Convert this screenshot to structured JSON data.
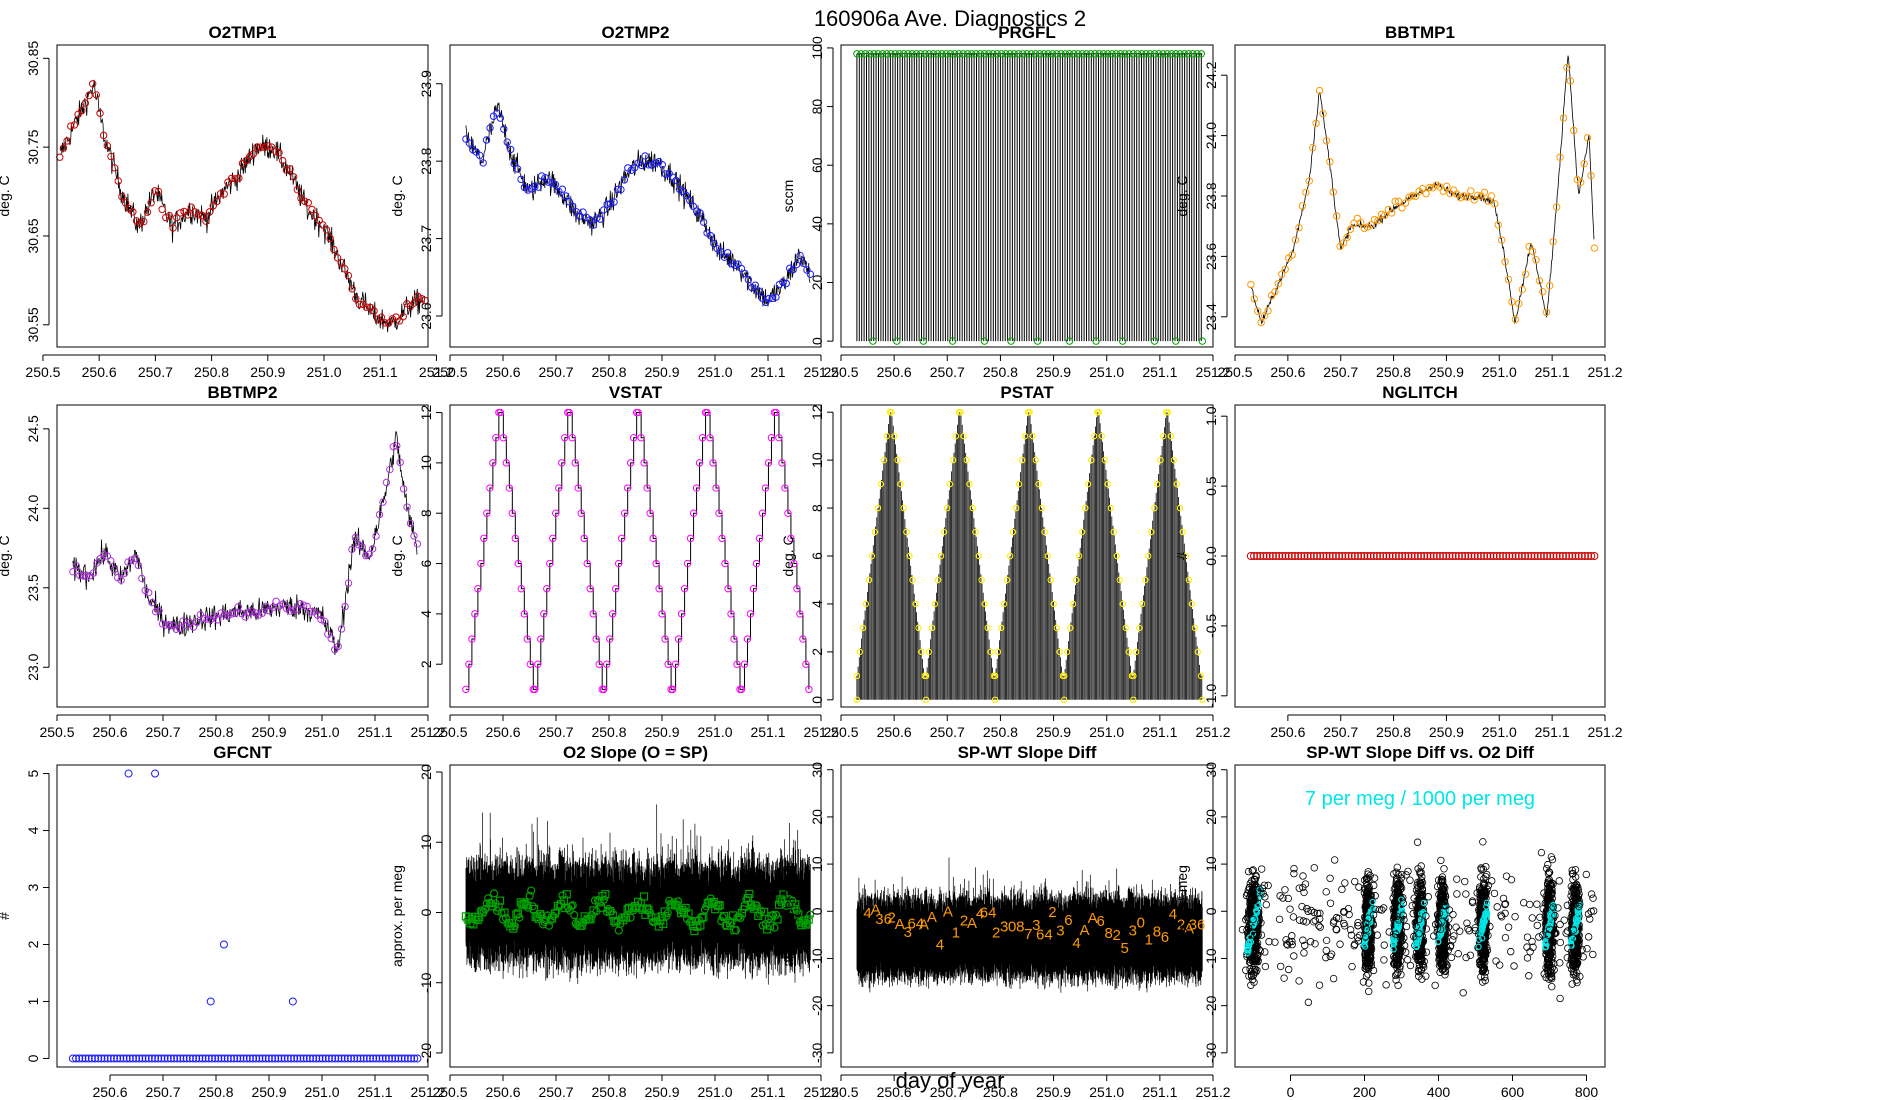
{
  "page": {
    "title": "160906a   Ave. Diagnostics 2",
    "xlabel": "day of year"
  },
  "colors": {
    "red": "#cc0000",
    "blue": "#1a1aff",
    "green": "#00a000",
    "orange": "#ff9900",
    "purple": "#b030e0",
    "magenta": "#ff00ff",
    "yellow": "#ffee00",
    "cyan": "#00e6e6",
    "black": "#000000"
  },
  "chart_data": [
    {
      "id": "o2tmp1",
      "type": "line",
      "title": "O2TMP1",
      "ylabel": "deg. C",
      "xlim": [
        250.525,
        251.185
      ],
      "ylim": [
        30.525,
        30.865
      ],
      "xticks": [
        "250.5",
        "250.6",
        "250.7",
        "250.8",
        "250.9",
        "251.0",
        "251.1",
        "251.2"
      ],
      "yticks": [
        "30.55",
        "30.65",
        "30.75",
        "30.85"
      ],
      "x": [
        250.53,
        250.56,
        250.59,
        250.61,
        250.64,
        250.67,
        250.7,
        250.73,
        250.76,
        250.79,
        250.82,
        250.85,
        250.88,
        250.91,
        250.94,
        250.97,
        251.0,
        251.03,
        251.06,
        251.09,
        251.12,
        251.15,
        251.18
      ],
      "y": [
        30.74,
        30.78,
        30.82,
        30.76,
        30.7,
        30.66,
        30.7,
        30.66,
        30.68,
        30.67,
        30.7,
        30.72,
        30.75,
        30.75,
        30.72,
        30.68,
        30.66,
        30.62,
        30.58,
        30.56,
        30.55,
        30.57,
        30.58
      ],
      "marker_color": "red"
    },
    {
      "id": "o2tmp2",
      "type": "line",
      "title": "O2TMP2",
      "ylabel": "deg. C",
      "xlim": [
        250.5,
        251.2
      ],
      "ylim": [
        23.56,
        23.95
      ],
      "xticks": [
        "250.5",
        "250.6",
        "250.7",
        "250.8",
        "250.9",
        "251.0",
        "251.1",
        "251.2"
      ],
      "yticks": [
        "23.6",
        "23.7",
        "23.8",
        "23.9"
      ],
      "x": [
        250.53,
        250.56,
        250.59,
        250.62,
        250.65,
        250.68,
        250.71,
        250.74,
        250.77,
        250.8,
        250.83,
        250.86,
        250.89,
        250.92,
        250.95,
        250.98,
        251.01,
        251.04,
        251.07,
        251.1,
        251.13,
        251.16,
        251.18
      ],
      "y": [
        23.83,
        23.8,
        23.87,
        23.8,
        23.76,
        23.78,
        23.76,
        23.73,
        23.72,
        23.74,
        23.78,
        23.8,
        23.8,
        23.78,
        23.75,
        23.72,
        23.68,
        23.67,
        23.64,
        23.62,
        23.64,
        23.68,
        23.65
      ],
      "marker_color": "blue"
    },
    {
      "id": "prgfl",
      "type": "line",
      "title": "PRGFL",
      "ylabel": "sccm",
      "xlim": [
        250.5,
        251.2
      ],
      "ylim": [
        -2,
        101
      ],
      "xticks": [
        "250.5",
        "250.6",
        "250.7",
        "250.8",
        "250.9",
        "251.0",
        "251.1",
        "251.2"
      ],
      "yticks": [
        "0",
        "20",
        "40",
        "60",
        "80",
        "100"
      ],
      "high_value": 98,
      "low_value": 0,
      "low_x": [
        250.56,
        250.605,
        250.655,
        250.71,
        250.77,
        250.82,
        250.87,
        250.93,
        250.98,
        251.03,
        251.09,
        251.13,
        251.18
      ],
      "marker_color": "green"
    },
    {
      "id": "bbtmp1",
      "type": "line",
      "title": "BBTMP1",
      "ylabel": "deg. C",
      "xlim": [
        250.5,
        251.2
      ],
      "ylim": [
        23.3,
        24.3
      ],
      "xticks": [
        "250.5",
        "250.6",
        "250.7",
        "250.8",
        "250.9",
        "251.0",
        "251.1",
        "251.2"
      ],
      "yticks": [
        "23.4",
        "23.6",
        "23.8",
        "24.0",
        "24.2"
      ],
      "x": [
        250.53,
        250.55,
        250.58,
        250.61,
        250.64,
        250.66,
        250.68,
        250.7,
        250.72,
        250.76,
        250.8,
        250.84,
        250.88,
        250.92,
        250.96,
        250.99,
        251.01,
        251.03,
        251.06,
        251.09,
        251.11,
        251.13,
        251.15,
        251.17,
        251.18
      ],
      "y": [
        23.5,
        23.38,
        23.5,
        23.62,
        23.85,
        24.15,
        23.9,
        23.62,
        23.7,
        23.7,
        23.76,
        23.8,
        23.84,
        23.8,
        23.8,
        23.78,
        23.6,
        23.38,
        23.65,
        23.4,
        23.8,
        24.28,
        23.8,
        24.0,
        23.62
      ],
      "marker_color": "orange"
    },
    {
      "id": "bbtmp2",
      "type": "line",
      "title": "BBTMP2",
      "ylabel": "deg. C",
      "xlim": [
        250.5,
        251.2
      ],
      "ylim": [
        22.75,
        24.65
      ],
      "xticks": [
        "250.5",
        "250.6",
        "250.7",
        "250.8",
        "250.9",
        "251.0",
        "251.1",
        "251.2"
      ],
      "yticks": [
        "23.0",
        "23.5",
        "24.0",
        "24.5"
      ],
      "x": [
        250.53,
        250.56,
        250.59,
        250.62,
        250.65,
        250.67,
        250.7,
        250.73,
        250.76,
        250.8,
        250.84,
        250.88,
        250.92,
        250.96,
        251.0,
        251.03,
        251.06,
        251.09,
        251.12,
        251.14,
        251.16,
        251.18
      ],
      "y": [
        23.62,
        23.58,
        23.72,
        23.55,
        23.72,
        23.45,
        23.3,
        23.25,
        23.3,
        23.32,
        23.35,
        23.35,
        23.38,
        23.38,
        23.32,
        23.1,
        23.8,
        23.7,
        24.1,
        24.45,
        24.0,
        23.75
      ],
      "marker_color": "purple"
    },
    {
      "id": "vstat",
      "type": "step",
      "title": "VSTAT",
      "ylabel": "deg. C",
      "xlim": [
        250.5,
        251.2
      ],
      "ylim": [
        0.3,
        12.3
      ],
      "xticks": [
        "250.5",
        "250.6",
        "250.7",
        "250.8",
        "250.9",
        "251.0",
        "251.1",
        "251.2"
      ],
      "yticks": [
        "2",
        "4",
        "6",
        "8",
        "10",
        "12"
      ],
      "cycle_start": 250.53,
      "cycle_length": 0.13,
      "cycles": 5,
      "min": 1,
      "max": 12,
      "marker_color": "magenta"
    },
    {
      "id": "pstat",
      "type": "impulse",
      "title": "PSTAT",
      "ylabel": "deg. C",
      "xlim": [
        250.5,
        251.2
      ],
      "ylim": [
        -0.3,
        12.3
      ],
      "xticks": [
        "250.5",
        "250.6",
        "250.7",
        "250.8",
        "250.9",
        "251.0",
        "251.1",
        "251.2"
      ],
      "yticks": [
        "0",
        "2",
        "4",
        "6",
        "8",
        "10",
        "12"
      ],
      "cycle_start": 250.53,
      "cycle_length": 0.13,
      "cycles": 5,
      "min": 1,
      "max": 12,
      "marker_color": "yellow"
    },
    {
      "id": "nglitch",
      "type": "scatter",
      "title": "NGLITCH",
      "ylabel": "#",
      "xlim": [
        250.5,
        251.2
      ],
      "ylim": [
        -1.08,
        1.08
      ],
      "xticks": [
        "250.6",
        "250.7",
        "250.8",
        "250.9",
        "251.0",
        "251.1",
        "251.2"
      ],
      "yticks": [
        "-1.0",
        "-0.5",
        "0.0",
        "0.5",
        "1.0"
      ],
      "x_start": 250.53,
      "x_end": 251.18,
      "count": 110,
      "value": 0,
      "marker_color": "red"
    },
    {
      "id": "gfcnt",
      "type": "scatter",
      "title": "GFCNT",
      "ylabel": "#",
      "xlim": [
        250.5,
        251.2
      ],
      "ylim": [
        -0.15,
        5.15
      ],
      "xticks": [
        "250.6",
        "250.7",
        "250.8",
        "250.9",
        "251.0",
        "251.1",
        "251.2"
      ],
      "yticks": [
        "0",
        "1",
        "2",
        "3",
        "4",
        "5"
      ],
      "x_start": 250.53,
      "x_end": 251.18,
      "count": 110,
      "baseline": 0,
      "points": [
        [
          250.635,
          5
        ],
        [
          250.685,
          5
        ],
        [
          250.79,
          1
        ],
        [
          250.815,
          2
        ],
        [
          250.945,
          1
        ]
      ],
      "marker_color": "blue"
    },
    {
      "id": "o2slope",
      "type": "scatter",
      "title": "O2 Slope (O = SP)",
      "ylabel": "approx. per meg",
      "xlim": [
        250.5,
        251.2
      ],
      "ylim": [
        -22,
        21
      ],
      "xticks": [
        "250.5",
        "250.6",
        "250.7",
        "250.8",
        "250.9",
        "251.0",
        "251.1",
        "251.2"
      ],
      "yticks": [
        "-20",
        "-10",
        "0",
        "10",
        "20"
      ],
      "noise_range": [
        -6,
        6
      ],
      "mean": 0,
      "marker_color": "green"
    },
    {
      "id": "spwt",
      "type": "scatter",
      "title": "SP-WT Slope Diff",
      "ylabel": "approx. per meg",
      "xlim": [
        250.5,
        251.2
      ],
      "ylim": [
        -33,
        31
      ],
      "xticks": [
        "250.5",
        "250.6",
        "250.7",
        "250.8",
        "250.9",
        "251.0",
        "251.1",
        "251.2"
      ],
      "yticks": [
        "-30",
        "-20",
        "-10",
        "0",
        "10",
        "20",
        "30"
      ],
      "noise_range": [
        -10,
        5
      ],
      "mean": -3,
      "labels": [
        "4",
        "A",
        "36",
        "2",
        "A",
        "3",
        "64",
        "A",
        "A",
        "4",
        "A",
        "1",
        "2",
        "A",
        "4",
        "64",
        "2",
        "3",
        "0",
        "8",
        "7",
        "3",
        "64",
        "2",
        "3",
        "6",
        "4",
        "A",
        "A",
        "6",
        "8",
        "2",
        "5",
        "3",
        "0",
        "1",
        "8",
        "6",
        "4",
        "2",
        "A",
        "36"
      ],
      "marker_color": "orange"
    },
    {
      "id": "spwt_vs_o2",
      "type": "scatter",
      "title": "SP-WT Slope Diff vs. O2 Diff",
      "ylabel": "approx. per meg",
      "xlim": [
        -150,
        850
      ],
      "ylim": [
        -33,
        31
      ],
      "xticks": [
        "0",
        "200",
        "400",
        "600",
        "800"
      ],
      "yticks": [
        "-30",
        "-20",
        "-10",
        "0",
        "10",
        "20",
        "30"
      ],
      "annotation": "7 per meg / 1000 per meg",
      "clusters": [
        -100,
        210,
        290,
        350,
        410,
        520,
        700,
        770
      ],
      "slope_per_meg": 0.007,
      "marker_color": "cyan"
    }
  ]
}
